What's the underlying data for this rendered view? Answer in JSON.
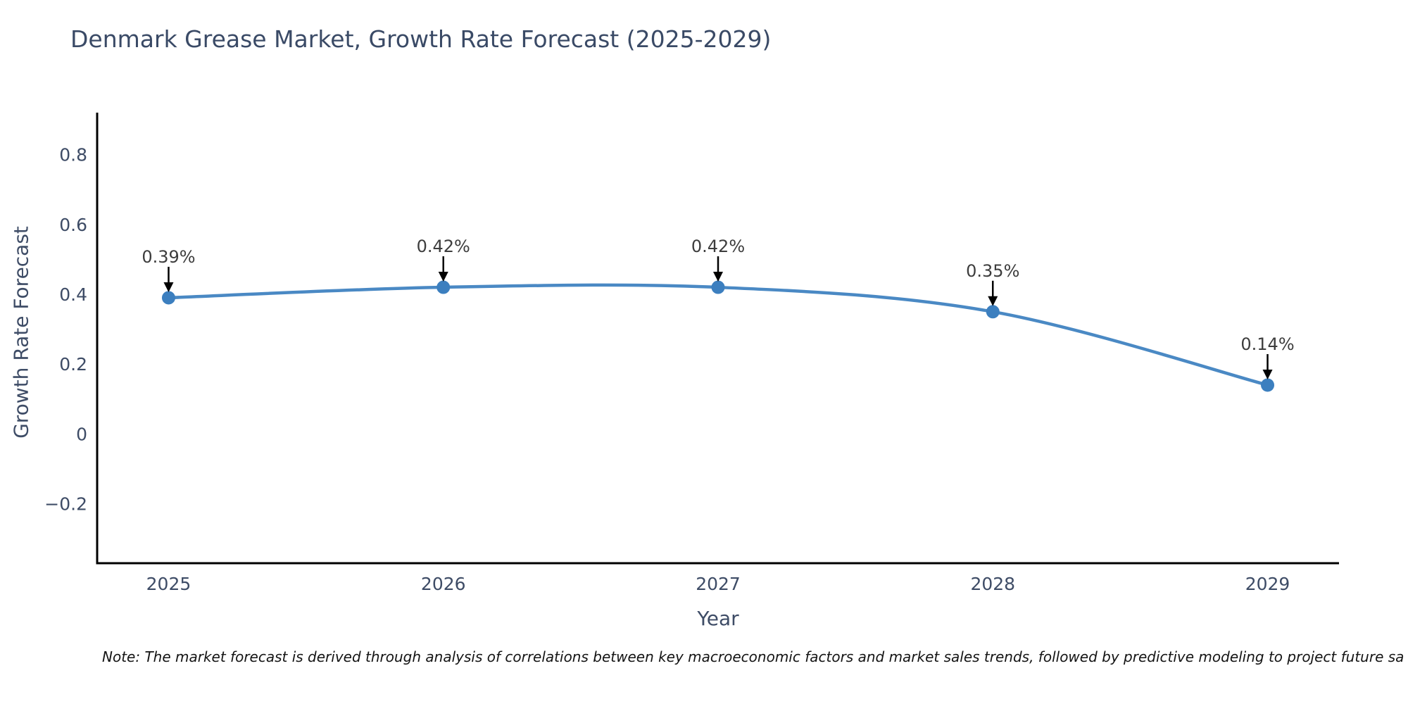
{
  "title": "Denmark Grease Market, Growth Rate Forecast (2025-2029)",
  "note": "Note: The market forecast is derived through analysis of correlations between key macroeconomic factors and market sales trends, followed by predictive modeling to project future sa",
  "chart_data": {
    "type": "line",
    "title": "Denmark Grease Market, Growth Rate Forecast (2025-2029)",
    "xlabel": "Year",
    "ylabel": "Growth Rate Forecast",
    "x": [
      2025,
      2026,
      2027,
      2028,
      2029
    ],
    "series": [
      {
        "name": "Growth Rate Forecast",
        "values": [
          0.39,
          0.42,
          0.42,
          0.35,
          0.14
        ]
      }
    ],
    "point_labels": [
      "0.39%",
      "0.42%",
      "0.42%",
      "0.35%",
      "0.14%"
    ],
    "xtick_labels": [
      "2025",
      "2026",
      "2027",
      "2028",
      "2029"
    ],
    "yticks": [
      0.8,
      0.6,
      0.4,
      0.2,
      0,
      -0.2
    ],
    "ytick_labels": [
      "0.8",
      "0.6",
      "0.4",
      "0.2",
      "0",
      "−0.2"
    ],
    "ylim": [
      -0.37,
      0.92
    ],
    "xlim": [
      2024.74,
      2029.26
    ],
    "grid": false,
    "legend_position": "none",
    "line_smoothing": "spline",
    "colors": {
      "line": "#4a89c4",
      "marker": "#3c7fbf",
      "axis": "#000000",
      "text": "#3e4c66",
      "annotation_text": "#3d3d3d",
      "arrow": "#000000",
      "background": "#ffffff"
    }
  }
}
